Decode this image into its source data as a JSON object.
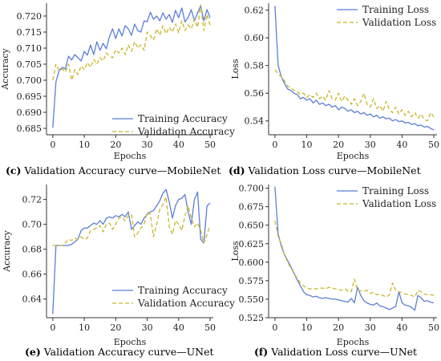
{
  "colors": {
    "train": "#5b7fd6",
    "val": "#c9b62a",
    "axis": "#333333"
  },
  "chart_data": [
    {
      "id": "c",
      "type": "line",
      "xlabel": "Epochs",
      "ylabel": "Accuracy",
      "xlim": [
        -2,
        51
      ],
      "ylim": [
        0.683,
        0.724
      ],
      "xticks": [
        0,
        10,
        20,
        30,
        40,
        50
      ],
      "yticks": [
        0.685,
        0.69,
        0.695,
        0.7,
        0.705,
        0.71,
        0.715,
        0.72
      ],
      "ytick_labels": [
        "0.685",
        "0.690",
        "0.695",
        "0.700",
        "0.705",
        "0.710",
        "0.715",
        "0.720"
      ],
      "legend_position": "bottom-right",
      "series": [
        {
          "name": "Training Accuracy",
          "style": "solid",
          "values": [
            0.6852,
            0.6995,
            0.703,
            0.704,
            0.7035,
            0.7075,
            0.7063,
            0.708,
            0.707,
            0.706,
            0.709,
            0.7078,
            0.711,
            0.708,
            0.712,
            0.7093,
            0.7115,
            0.7098,
            0.7136,
            0.716,
            0.713,
            0.716,
            0.7138,
            0.717,
            0.716,
            0.714,
            0.7175,
            0.7155,
            0.715,
            0.7185,
            0.7182,
            0.7212,
            0.719,
            0.72,
            0.7185,
            0.721,
            0.719,
            0.7205,
            0.718,
            0.7218,
            0.7195,
            0.7225,
            0.7182,
            0.7195,
            0.722,
            0.7185,
            0.721,
            0.7232,
            0.7185,
            0.722,
            0.7195
          ]
        },
        {
          "name": "Validation Accuracy",
          "style": "dashed",
          "values": [
            0.7,
            0.705,
            0.703,
            0.7035,
            0.7025,
            0.705,
            0.7,
            0.7033,
            0.7018,
            0.7045,
            0.7033,
            0.7055,
            0.704,
            0.7065,
            0.705,
            0.707,
            0.706,
            0.7085,
            0.7075,
            0.707,
            0.7095,
            0.7085,
            0.71,
            0.708,
            0.711,
            0.709,
            0.712,
            0.71,
            0.711,
            0.7093,
            0.715,
            0.714,
            0.7125,
            0.716,
            0.714,
            0.717,
            0.7145,
            0.7165,
            0.715,
            0.7175,
            0.7148,
            0.7185,
            0.7155,
            0.7172,
            0.716,
            0.719,
            0.7165,
            0.7235,
            0.7155,
            0.7205,
            0.717
          ]
        }
      ]
    },
    {
      "id": "d",
      "type": "line",
      "xlabel": "Epochs",
      "ylabel": "Loss",
      "xlim": [
        -2,
        51
      ],
      "ylim": [
        0.53,
        0.625
      ],
      "xticks": [
        0,
        10,
        20,
        30,
        40,
        50
      ],
      "yticks": [
        0.54,
        0.56,
        0.58,
        0.6,
        0.62
      ],
      "ytick_labels": [
        "0.54",
        "0.56",
        "0.58",
        "0.60",
        "0.62"
      ],
      "legend_position": "top-right",
      "series": [
        {
          "name": "Training Loss",
          "style": "solid",
          "values": [
            0.623,
            0.58,
            0.572,
            0.567,
            0.563,
            0.562,
            0.56,
            0.559,
            0.556,
            0.557,
            0.555,
            0.556,
            0.553,
            0.555,
            0.552,
            0.553,
            0.551,
            0.552,
            0.55,
            0.551,
            0.548,
            0.55,
            0.549,
            0.547,
            0.548,
            0.546,
            0.547,
            0.545,
            0.546,
            0.544,
            0.545,
            0.543,
            0.544,
            0.542,
            0.543,
            0.5415,
            0.542,
            0.54,
            0.541,
            0.5395,
            0.54,
            0.5385,
            0.539,
            0.5375,
            0.538,
            0.5365,
            0.537,
            0.5355,
            0.536,
            0.5345,
            0.5335
          ]
        },
        {
          "name": "Validation Loss",
          "style": "dashed",
          "values": [
            0.577,
            0.574,
            0.572,
            0.569,
            0.565,
            0.564,
            0.562,
            0.561,
            0.559,
            0.56,
            0.557,
            0.559,
            0.557,
            0.56,
            0.556,
            0.558,
            0.555,
            0.562,
            0.556,
            0.555,
            0.56,
            0.554,
            0.558,
            0.555,
            0.552,
            0.556,
            0.551,
            0.554,
            0.56,
            0.552,
            0.55,
            0.556,
            0.549,
            0.551,
            0.547,
            0.554,
            0.548,
            0.546,
            0.55,
            0.545,
            0.548,
            0.544,
            0.547,
            0.543,
            0.546,
            0.542,
            0.545,
            0.541,
            0.54,
            0.546,
            0.543
          ]
        }
      ]
    },
    {
      "id": "e",
      "type": "line",
      "xlabel": "Epochs",
      "ylabel": "Accuracy",
      "xlim": [
        -2,
        51
      ],
      "ylim": [
        0.625,
        0.732
      ],
      "xticks": [
        0,
        10,
        20,
        30,
        40,
        50
      ],
      "yticks": [
        0.64,
        0.66,
        0.68,
        0.7,
        0.72
      ],
      "ytick_labels": [
        "0.64",
        "0.66",
        "0.68",
        "0.70",
        "0.72"
      ],
      "legend_position": "bottom-right",
      "series": [
        {
          "name": "Training Accuracy",
          "style": "solid",
          "values": [
            0.628,
            0.683,
            0.683,
            0.683,
            0.683,
            0.683,
            0.684,
            0.686,
            0.688,
            0.695,
            0.697,
            0.697,
            0.699,
            0.701,
            0.7,
            0.703,
            0.7,
            0.705,
            0.706,
            0.705,
            0.707,
            0.706,
            0.708,
            0.706,
            0.71,
            0.696,
            0.699,
            0.702,
            0.7,
            0.705,
            0.708,
            0.71,
            0.711,
            0.715,
            0.719,
            0.725,
            0.728,
            0.718,
            0.705,
            0.715,
            0.72,
            0.721,
            0.724,
            0.71,
            0.7,
            0.72,
            0.726,
            0.688,
            0.685,
            0.715,
            0.717
          ]
        },
        {
          "name": "Validation Accuracy",
          "style": "dashed",
          "values": [
            0.683,
            0.683,
            0.683,
            0.683,
            0.685,
            0.688,
            0.687,
            0.689,
            0.688,
            0.69,
            0.688,
            0.689,
            0.695,
            0.696,
            0.697,
            0.699,
            0.694,
            0.7,
            0.701,
            0.696,
            0.7,
            0.705,
            0.706,
            0.703,
            0.707,
            0.708,
            0.69,
            0.693,
            0.697,
            0.7,
            0.71,
            0.708,
            0.69,
            0.7,
            0.712,
            0.716,
            0.722,
            0.698,
            0.692,
            0.703,
            0.7,
            0.695,
            0.707,
            0.715,
            0.705,
            0.698,
            0.701,
            0.695,
            0.685,
            0.692,
            0.699
          ]
        }
      ]
    },
    {
      "id": "f",
      "type": "line",
      "xlabel": "Epochs",
      "ylabel": "Loss",
      "xlim": [
        -2,
        51
      ],
      "ylim": [
        0.525,
        0.705
      ],
      "xticks": [
        0,
        10,
        20,
        30,
        40,
        50
      ],
      "yticks": [
        0.525,
        0.55,
        0.575,
        0.6,
        0.625,
        0.65,
        0.675,
        0.7
      ],
      "ytick_labels": [
        "0.525",
        "0.550",
        "0.575",
        "0.600",
        "0.625",
        "0.650",
        "0.675",
        "0.700"
      ],
      "legend_position": "top-right",
      "series": [
        {
          "name": "Training Loss",
          "style": "solid",
          "values": [
            0.702,
            0.638,
            0.622,
            0.61,
            0.602,
            0.594,
            0.585,
            0.576,
            0.568,
            0.56,
            0.556,
            0.555,
            0.553,
            0.554,
            0.552,
            0.551,
            0.552,
            0.551,
            0.55,
            0.55,
            0.549,
            0.548,
            0.547,
            0.546,
            0.551,
            0.545,
            0.566,
            0.555,
            0.548,
            0.545,
            0.543,
            0.542,
            0.545,
            0.541,
            0.54,
            0.538,
            0.536,
            0.538,
            0.54,
            0.56,
            0.545,
            0.542,
            0.541,
            0.539,
            0.535,
            0.555,
            0.552,
            0.547,
            0.548,
            0.546,
            0.545
          ]
        },
        {
          "name": "Validation Loss",
          "style": "dashed",
          "values": [
            0.656,
            0.635,
            0.625,
            0.61,
            0.6,
            0.592,
            0.585,
            0.578,
            0.572,
            0.568,
            0.565,
            0.564,
            0.564,
            0.564,
            0.565,
            0.565,
            0.564,
            0.566,
            0.565,
            0.564,
            0.563,
            0.562,
            0.564,
            0.561,
            0.56,
            0.577,
            0.562,
            0.561,
            0.561,
            0.562,
            0.558,
            0.559,
            0.556,
            0.557,
            0.555,
            0.553,
            0.556,
            0.572,
            0.562,
            0.56,
            0.559,
            0.557,
            0.556,
            0.555,
            0.553,
            0.562,
            0.56,
            0.557,
            0.556,
            0.556,
            0.555
          ]
        }
      ]
    }
  ],
  "captions": {
    "c": {
      "tag": "(c)",
      "text": " Validation Accuracy curve—MobileNet"
    },
    "d": {
      "tag": "(d)",
      "text": " Validation Loss curve—MobileNet"
    },
    "e": {
      "tag": "(e)",
      "text": " Validation Accuracy curve—UNet"
    },
    "f": {
      "tag": "(f)",
      "text": " Validation Loss curve—UNet"
    }
  }
}
